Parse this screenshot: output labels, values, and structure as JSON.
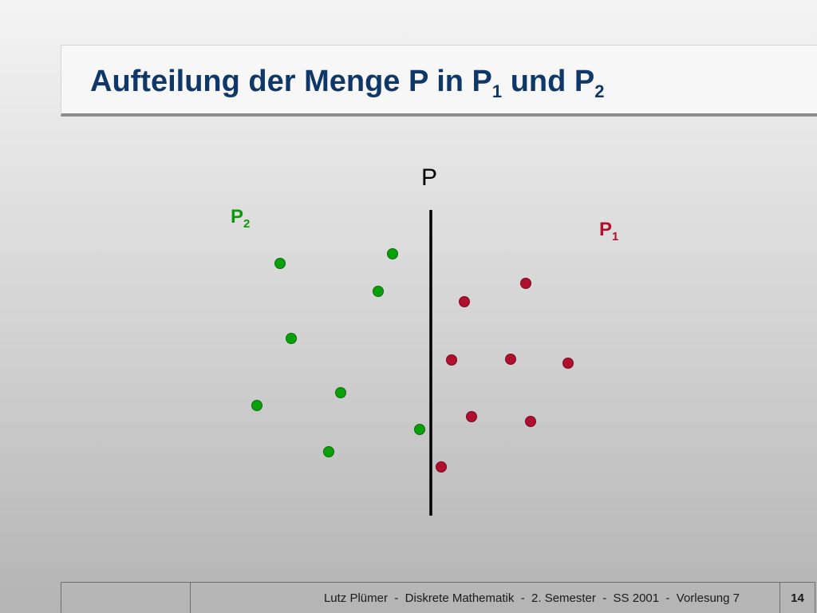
{
  "slide": {
    "title_main": "Aufteilung der Menge P in P",
    "title_sub1": "1",
    "title_mid": " und P",
    "title_sub2": "2"
  },
  "diagram": {
    "set_label": "P",
    "left_label": "P",
    "left_label_sub": "2",
    "right_label": "P",
    "right_label_sub": "1",
    "colors": {
      "left_points": "#0aa00a",
      "right_points": "#b0102e",
      "divider": "#000000",
      "left_label": "#0a9a0a",
      "right_label": "#b0102e"
    }
  },
  "footer": {
    "text": "Lutz Plümer  -  Diskrete Mathematik  -  2. Semester  -  SS 2001  -  Vorlesung 7",
    "page": "14"
  }
}
